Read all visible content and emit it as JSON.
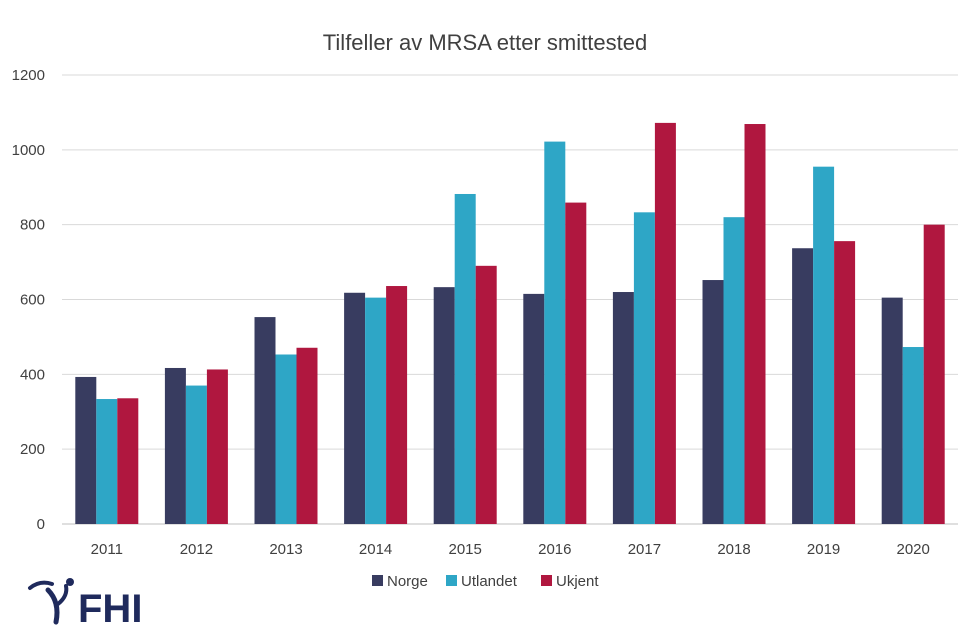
{
  "chart_data": {
    "type": "bar",
    "title": "Tilfeller av MRSA etter smittested",
    "categories": [
      "2011",
      "2012",
      "2013",
      "2014",
      "2015",
      "2016",
      "2017",
      "2018",
      "2019",
      "2020"
    ],
    "series": [
      {
        "name": "Norge",
        "color": "#383c60",
        "values": [
          393,
          417,
          553,
          618,
          633,
          615,
          620,
          652,
          737,
          605
        ]
      },
      {
        "name": "Utlandet",
        "color": "#2ea6c6",
        "values": [
          334,
          370,
          453,
          605,
          882,
          1022,
          833,
          820,
          955,
          473
        ]
      },
      {
        "name": "Ukjent",
        "color": "#b0173f",
        "values": [
          336,
          413,
          471,
          636,
          690,
          859,
          1072,
          1069,
          756,
          800
        ]
      }
    ],
    "ylim": [
      0,
      1200
    ],
    "yticks": [
      0,
      200,
      400,
      600,
      800,
      1000,
      1200
    ],
    "xlabel": "",
    "ylabel": "",
    "grid": true,
    "legend_position": "bottom"
  },
  "logo": {
    "text": "FHI"
  },
  "colors": {
    "grid": "#d9d9d9",
    "axis": "#bfbfbf",
    "logo": "#1f2a5c"
  }
}
